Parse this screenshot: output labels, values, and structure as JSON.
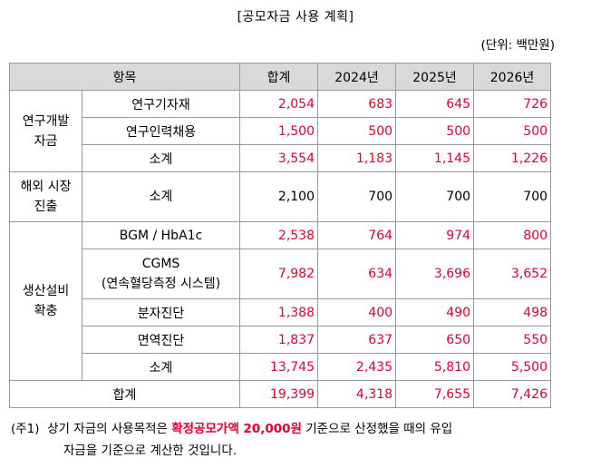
{
  "title": "[공모자금 사용 계획]",
  "unit": "(단위: 백만원)",
  "headers": [
    "항목",
    "합계",
    "2024년",
    "2025년",
    "2026년"
  ],
  "groups": {
    "rnd": {
      "label": "연구개발\n자금",
      "rows": [
        {
          "item": "연구기자재",
          "values": [
            "2,054",
            "683",
            "645",
            "726"
          ]
        },
        {
          "item": "연구인력채용",
          "values": [
            "1,500",
            "500",
            "500",
            "500"
          ]
        },
        {
          "item": "소계",
          "values": [
            "3,554",
            "1,183",
            "1,145",
            "1,226"
          ]
        }
      ]
    },
    "overseas": {
      "label": "해외 시장\n진출",
      "rows": [
        {
          "item": "소계",
          "values": [
            "2,100",
            "700",
            "700",
            "700"
          ]
        }
      ]
    },
    "production": {
      "label": "생산설비\n확충",
      "rows": [
        {
          "item": "BGM / HbA1c",
          "values": [
            "2,538",
            "764",
            "974",
            "800"
          ]
        },
        {
          "item": "CGMS\n(연속혈당측정 시스템)",
          "values": [
            "7,982",
            "634",
            "3,696",
            "3,652"
          ]
        },
        {
          "item": "분자진단",
          "values": [
            "1,388",
            "400",
            "490",
            "498"
          ]
        },
        {
          "item": "면역진단",
          "values": [
            "1,837",
            "637",
            "650",
            "550"
          ]
        },
        {
          "item": "소계",
          "values": [
            "13,745",
            "2,435",
            "5,810",
            "5,500"
          ]
        }
      ]
    }
  },
  "total": {
    "label": "합계",
    "values": [
      "19,399",
      "4,318",
      "7,655",
      "7,426"
    ]
  },
  "note": {
    "prefix": "(주1)",
    "text_before": "상기 자금의 사용목적은 ",
    "highlight": "확정공모가액 20,000원",
    "text_after": " 기준으로 산정했을 때의 유입",
    "line2": "자금을 기준으로 계산한 것입니다."
  },
  "colors": {
    "highlight": "#e8002e",
    "header_bg": "#d9d9d9",
    "border": "#9a9a9a"
  }
}
